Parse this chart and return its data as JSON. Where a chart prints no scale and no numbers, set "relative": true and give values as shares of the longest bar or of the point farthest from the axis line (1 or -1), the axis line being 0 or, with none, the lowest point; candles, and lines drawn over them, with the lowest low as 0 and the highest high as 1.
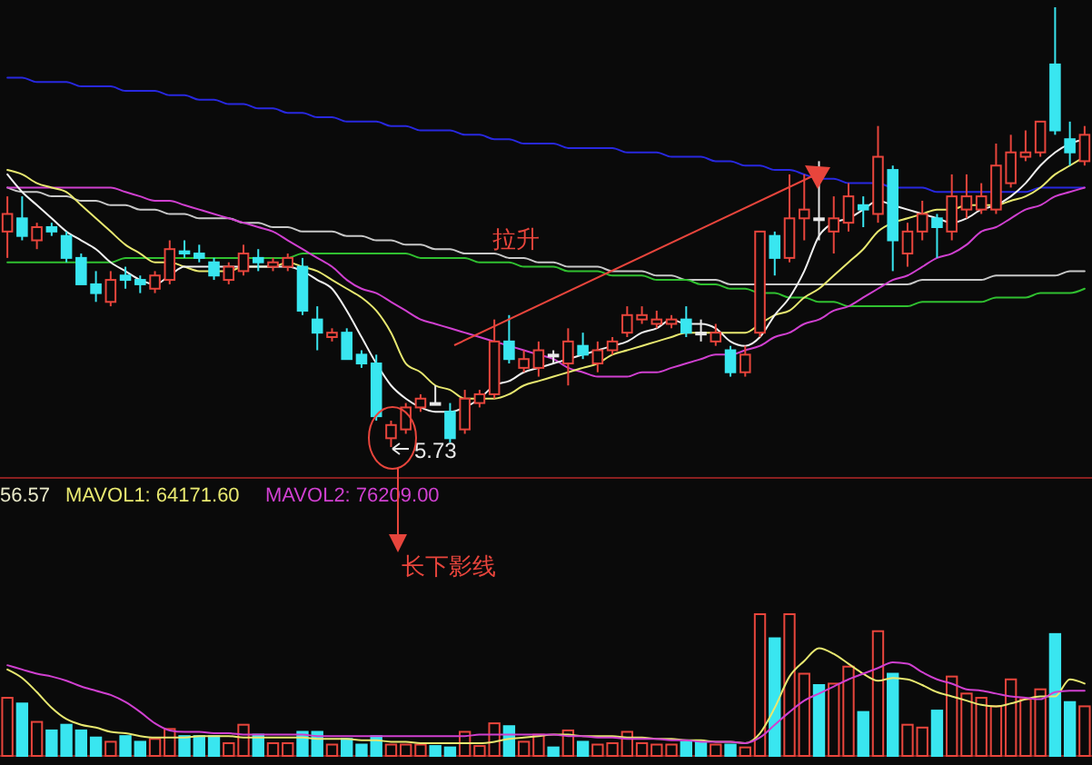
{
  "chart_data": [
    {
      "type": "candlestick",
      "relative": true,
      "categories": [
        null,
        null,
        null,
        null,
        null,
        null,
        null,
        null,
        null,
        null,
        null,
        null,
        null,
        null,
        null,
        null,
        null,
        null,
        null,
        null,
        null,
        null,
        null,
        null,
        null,
        null,
        null,
        null,
        null,
        null,
        null,
        null,
        null,
        null,
        null,
        null,
        null,
        null,
        null,
        null,
        null,
        null,
        null,
        null,
        null,
        null,
        null,
        null,
        null,
        null,
        null,
        null,
        null,
        null,
        null,
        null,
        null,
        null,
        null,
        null,
        null,
        null,
        null,
        null,
        null,
        null,
        null,
        null,
        null,
        null,
        null,
        null,
        null,
        null
      ],
      "ohlc": [
        [
          0.49,
          0.57,
          0.43,
          0.53
        ],
        [
          0.52,
          0.57,
          0.47,
          0.48
        ],
        [
          0.47,
          0.51,
          0.45,
          0.5
        ],
        [
          0.5,
          0.51,
          0.48,
          0.49
        ],
        [
          0.48,
          0.49,
          0.42,
          0.43
        ],
        [
          0.43,
          0.44,
          0.37,
          0.37
        ],
        [
          0.37,
          0.4,
          0.33,
          0.35
        ],
        [
          0.33,
          0.4,
          0.32,
          0.38
        ],
        [
          0.39,
          0.41,
          0.36,
          0.38
        ],
        [
          0.38,
          0.39,
          0.35,
          0.37
        ],
        [
          0.36,
          0.4,
          0.35,
          0.39
        ],
        [
          0.38,
          0.47,
          0.37,
          0.45
        ],
        [
          0.445,
          0.47,
          0.43,
          0.44
        ],
        [
          0.44,
          0.46,
          0.42,
          0.43
        ],
        [
          0.42,
          0.43,
          0.38,
          0.39
        ],
        [
          0.38,
          0.42,
          0.37,
          0.41
        ],
        [
          0.4,
          0.46,
          0.39,
          0.44
        ],
        [
          0.43,
          0.45,
          0.4,
          0.42
        ],
        [
          0.41,
          0.43,
          0.4,
          0.42
        ],
        [
          0.41,
          0.44,
          0.4,
          0.43
        ],
        [
          0.41,
          0.43,
          0.3,
          0.31
        ],
        [
          0.29,
          0.32,
          0.22,
          0.26
        ],
        [
          0.25,
          0.27,
          0.24,
          0.26
        ],
        [
          0.26,
          0.27,
          0.2,
          0.2
        ],
        [
          0.21,
          0.22,
          0.18,
          0.19
        ],
        [
          0.19,
          0.21,
          0.06,
          0.07
        ],
        [
          0.02,
          0.06,
          0,
          0.05
        ],
        [
          0.04,
          0.1,
          0.03,
          0.09
        ],
        [
          0.09,
          0.12,
          0.08,
          0.11
        ],
        [
          0.1,
          0.14,
          0.095,
          0.1
        ],
        [
          0.08,
          0.1,
          0.01,
          0.02
        ],
        [
          0.04,
          0.13,
          0.03,
          0.11
        ],
        [
          0.1,
          0.13,
          0.09,
          0.12
        ],
        [
          0.12,
          0.29,
          0.11,
          0.24
        ],
        [
          0.24,
          0.3,
          0.19,
          0.2
        ],
        [
          0.18,
          0.22,
          0.17,
          0.2
        ],
        [
          0.18,
          0.24,
          0.16,
          0.22
        ],
        [
          0.21,
          0.22,
          0.19,
          0.21
        ],
        [
          0.19,
          0.27,
          0.14,
          0.24
        ],
        [
          0.23,
          0.26,
          0.2,
          0.21
        ],
        [
          0.19,
          0.24,
          0.17,
          0.22
        ],
        [
          0.22,
          0.25,
          0.21,
          0.24
        ],
        [
          0.26,
          0.32,
          0.25,
          0.3
        ],
        [
          0.29,
          0.32,
          0.28,
          0.3
        ],
        [
          0.28,
          0.31,
          0.27,
          0.29
        ],
        [
          0.28,
          0.3,
          0.27,
          0.29
        ],
        [
          0.29,
          0.32,
          0.25,
          0.26
        ],
        [
          0.26,
          0.29,
          0.24,
          0.26
        ],
        [
          0.24,
          0.28,
          0.23,
          0.26
        ],
        [
          0.22,
          0.23,
          0.16,
          0.17
        ],
        [
          0.17,
          0.23,
          0.16,
          0.21
        ],
        [
          0.26,
          0.49,
          0.25,
          0.49
        ],
        [
          0.48,
          0.49,
          0.39,
          0.43
        ],
        [
          0.43,
          0.62,
          0.42,
          0.52
        ],
        [
          0.52,
          0.62,
          0.47,
          0.54
        ],
        [
          0.52,
          0.65,
          0.47,
          0.52
        ],
        [
          0.49,
          0.57,
          0.44,
          0.52
        ],
        [
          0.51,
          0.6,
          0.49,
          0.57
        ],
        [
          0.55,
          0.57,
          0.5,
          0.54
        ],
        [
          0.53,
          0.73,
          0.51,
          0.66
        ],
        [
          0.63,
          0.64,
          0.4,
          0.47
        ],
        [
          0.44,
          0.51,
          0.41,
          0.49
        ],
        [
          0.49,
          0.56,
          0.47,
          0.53
        ],
        [
          0.52,
          0.53,
          0.43,
          0.5
        ],
        [
          0.49,
          0.62,
          0.47,
          0.57
        ],
        [
          0.54,
          0.62,
          0.52,
          0.57
        ],
        [
          0.54,
          0.6,
          0.53,
          0.57
        ],
        [
          0.54,
          0.69,
          0.53,
          0.64
        ],
        [
          0.6,
          0.71,
          0.59,
          0.67
        ],
        [
          0.66,
          0.72,
          0.65,
          0.67
        ],
        [
          0.67,
          0.74,
          0.66,
          0.74
        ],
        [
          0.87,
          1,
          0.71,
          0.72
        ],
        [
          0.7,
          0.74,
          0.64,
          0.67
        ],
        [
          0.65,
          0.73,
          0.64,
          0.71
        ]
      ],
      "series": [
        {
          "type": "line",
          "color": "#2828e0",
          "values": [
            0.84,
            0.84,
            0.83,
            0.83,
            0.83,
            0.82,
            0.82,
            0.82,
            0.81,
            0.81,
            0.81,
            0.8,
            0.8,
            0.79,
            0.79,
            0.78,
            0.78,
            0.77,
            0.77,
            0.76,
            0.76,
            0.75,
            0.75,
            0.74,
            0.74,
            0.74,
            0.73,
            0.73,
            0.72,
            0.72,
            0.72,
            0.71,
            0.71,
            0.7,
            0.7,
            0.69,
            0.69,
            0.69,
            0.68,
            0.68,
            0.68,
            0.68,
            0.67,
            0.67,
            0.67,
            0.66,
            0.66,
            0.66,
            0.65,
            0.65,
            0.64,
            0.64,
            0.63,
            0.63,
            0.62,
            0.61,
            0.61,
            0.6,
            0.6,
            0.6,
            0.59,
            0.59,
            0.59,
            0.58,
            0.58,
            0.58,
            0.58,
            0.58,
            0.58,
            0.58,
            0.59,
            0.59,
            0.59,
            0.59
          ]
        },
        {
          "type": "line",
          "color": "#c8c8c8",
          "values": [
            0.59,
            0.58,
            0.58,
            0.57,
            0.57,
            0.56,
            0.56,
            0.55,
            0.55,
            0.54,
            0.54,
            0.53,
            0.53,
            0.52,
            0.52,
            0.52,
            0.51,
            0.51,
            0.5,
            0.5,
            0.49,
            0.49,
            0.49,
            0.48,
            0.48,
            0.47,
            0.47,
            0.46,
            0.46,
            0.45,
            0.45,
            0.44,
            0.44,
            0.44,
            0.43,
            0.43,
            0.42,
            0.42,
            0.41,
            0.41,
            0.41,
            0.4,
            0.4,
            0.4,
            0.39,
            0.39,
            0.38,
            0.38,
            0.38,
            0.37,
            0.37,
            0.37,
            0.37,
            0.37,
            0.37,
            0.37,
            0.37,
            0.37,
            0.37,
            0.37,
            0.37,
            0.37,
            0.38,
            0.38,
            0.38,
            0.38,
            0.38,
            0.39,
            0.39,
            0.39,
            0.39,
            0.39,
            0.4,
            0.4
          ]
        },
        {
          "type": "line",
          "color": "#30c030",
          "values": [
            0.42,
            0.42,
            0.42,
            0.42,
            0.42,
            0.42,
            0.42,
            0.42,
            0.43,
            0.43,
            0.43,
            0.43,
            0.43,
            0.43,
            0.43,
            0.43,
            0.43,
            0.43,
            0.43,
            0.43,
            0.44,
            0.44,
            0.44,
            0.44,
            0.44,
            0.44,
            0.44,
            0.44,
            0.43,
            0.43,
            0.43,
            0.43,
            0.42,
            0.42,
            0.42,
            0.41,
            0.41,
            0.41,
            0.4,
            0.4,
            0.4,
            0.39,
            0.39,
            0.39,
            0.38,
            0.38,
            0.38,
            0.37,
            0.37,
            0.36,
            0.36,
            0.35,
            0.35,
            0.34,
            0.34,
            0.33,
            0.33,
            0.32,
            0.32,
            0.32,
            0.32,
            0.32,
            0.33,
            0.33,
            0.33,
            0.33,
            0.33,
            0.34,
            0.34,
            0.34,
            0.35,
            0.35,
            0.35,
            0.36
          ]
        },
        {
          "type": "line",
          "color": "#d040d0",
          "values": [
            0.59,
            0.59,
            0.59,
            0.59,
            0.59,
            0.59,
            0.59,
            0.59,
            0.58,
            0.57,
            0.56,
            0.56,
            0.55,
            0.54,
            0.53,
            0.52,
            0.51,
            0.5,
            0.49,
            0.47,
            0.45,
            0.43,
            0.41,
            0.38,
            0.36,
            0.35,
            0.33,
            0.31,
            0.29,
            0.28,
            0.27,
            0.26,
            0.25,
            0.24,
            0.23,
            0.22,
            0.21,
            0.2,
            0.18,
            0.17,
            0.16,
            0.16,
            0.16,
            0.17,
            0.17,
            0.18,
            0.19,
            0.2,
            0.21,
            0.21,
            0.22,
            0.23,
            0.25,
            0.26,
            0.28,
            0.29,
            0.31,
            0.32,
            0.34,
            0.36,
            0.38,
            0.39,
            0.41,
            0.43,
            0.44,
            0.46,
            0.49,
            0.5,
            0.52,
            0.54,
            0.55,
            0.57,
            0.58,
            0.59
          ]
        },
        {
          "type": "line",
          "color": "#e8e870",
          "values": [
            0.63,
            0.62,
            0.6,
            0.59,
            0.58,
            0.55,
            0.52,
            0.49,
            0.46,
            0.44,
            0.42,
            0.42,
            0.41,
            0.4,
            0.4,
            0.4,
            0.41,
            0.41,
            0.41,
            0.42,
            0.41,
            0.4,
            0.38,
            0.36,
            0.34,
            0.31,
            0.26,
            0.19,
            0.17,
            0.14,
            0.13,
            0.11,
            0.11,
            0.11,
            0.12,
            0.14,
            0.15,
            0.16,
            0.17,
            0.18,
            0.19,
            0.21,
            0.22,
            0.23,
            0.24,
            0.25,
            0.26,
            0.26,
            0.26,
            0.26,
            0.26,
            0.28,
            0.3,
            0.31,
            0.34,
            0.36,
            0.39,
            0.42,
            0.45,
            0.49,
            0.51,
            0.52,
            0.53,
            0.54,
            0.54,
            0.55,
            0.55,
            0.55,
            0.56,
            0.57,
            0.59,
            0.62,
            0.64,
            0.66
          ]
        },
        {
          "type": "line",
          "color": "#f0f0f0",
          "values": [
            0.62,
            0.58,
            0.55,
            0.52,
            0.49,
            0.47,
            0.45,
            0.42,
            0.4,
            0.38,
            0.37,
            0.39,
            0.41,
            0.41,
            0.41,
            0.41,
            0.41,
            0.41,
            0.41,
            0.41,
            0.4,
            0.38,
            0.36,
            0.31,
            0.25,
            0.19,
            0.14,
            0.11,
            0.09,
            0.08,
            0.08,
            0.09,
            0.11,
            0.14,
            0.15,
            0.17,
            0.18,
            0.19,
            0.2,
            0.21,
            0.22,
            0.23,
            0.24,
            0.26,
            0.27,
            0.29,
            0.28,
            0.28,
            0.27,
            0.24,
            0.23,
            0.25,
            0.3,
            0.34,
            0.4,
            0.48,
            0.51,
            0.52,
            0.54,
            0.56,
            0.55,
            0.54,
            0.53,
            0.52,
            0.51,
            0.52,
            0.54,
            0.55,
            0.57,
            0.6,
            0.64,
            0.67,
            0.69,
            0.7
          ]
        }
      ],
      "annotations": [
        "拉升",
        "5.73",
        "长下影线"
      ]
    },
    {
      "type": "bar",
      "relative": true,
      "categories": [
        null,
        null,
        null,
        null,
        null,
        null,
        null,
        null,
        null,
        null,
        null,
        null,
        null,
        null,
        null,
        null,
        null,
        null,
        null,
        null,
        null,
        null,
        null,
        null,
        null,
        null,
        null,
        null,
        null,
        null,
        null,
        null,
        null,
        null,
        null,
        null,
        null,
        null,
        null,
        null,
        null,
        null,
        null,
        null,
        null,
        null,
        null,
        null,
        null,
        null,
        null,
        null,
        null,
        null,
        null,
        null,
        null,
        null,
        null,
        null,
        null,
        null,
        null,
        null,
        null,
        null,
        null,
        null,
        null,
        null,
        null,
        null,
        null,
        null
      ],
      "values": [
        0.41,
        0.37,
        0.24,
        0.18,
        0.22,
        0.18,
        0.13,
        0.1,
        0.14,
        0.1,
        0.12,
        0.19,
        0.14,
        0.14,
        0.14,
        0.09,
        0.22,
        0.15,
        0.09,
        0.09,
        0.17,
        0.17,
        0.08,
        0.12,
        0.08,
        0.14,
        0.08,
        0.08,
        0.08,
        0.07,
        0.06,
        0.17,
        0.07,
        0.23,
        0.21,
        0.1,
        0.15,
        0.06,
        0.18,
        0.1,
        0.08,
        0.09,
        0.17,
        0.09,
        0.08,
        0.08,
        0.1,
        0.1,
        0.08,
        0.08,
        0.06,
        1,
        0.83,
        1,
        0.58,
        0.5,
        0.51,
        0.63,
        0.31,
        0.88,
        0.58,
        0.22,
        0.2,
        0.32,
        0.56,
        0.44,
        0.41,
        0.35,
        0.54,
        0.4,
        0.47,
        0.86,
        0.38,
        0.35
      ],
      "colors": [
        "#e8453c",
        "#39e6f0",
        "#e8453c",
        "#39e6f0",
        "#39e6f0",
        "#39e6f0",
        "#39e6f0",
        "#e8453c",
        "#39e6f0",
        "#39e6f0",
        "#e8453c",
        "#e8453c",
        "#39e6f0",
        "#39e6f0",
        "#39e6f0",
        "#e8453c",
        "#e8453c",
        "#39e6f0",
        "#e8453c",
        "#e8453c",
        "#39e6f0",
        "#39e6f0",
        "#e8453c",
        "#39e6f0",
        "#39e6f0",
        "#39e6f0",
        "#e8453c",
        "#e8453c",
        "#e8453c",
        "#39e6f0",
        "#39e6f0",
        "#e8453c",
        "#e8453c",
        "#e8453c",
        "#39e6f0",
        "#e8453c",
        "#e8453c",
        "#39e6f0",
        "#e8453c",
        "#39e6f0",
        "#e8453c",
        "#e8453c",
        "#e8453c",
        "#e8453c",
        "#e8453c",
        "#e8453c",
        "#39e6f0",
        "#39e6f0",
        "#e8453c",
        "#39e6f0",
        "#e8453c",
        "#e8453c",
        "#39e6f0",
        "#e8453c",
        "#e8453c",
        "#39e6f0",
        "#e8453c",
        "#e8453c",
        "#39e6f0",
        "#e8453c",
        "#39e6f0",
        "#e8453c",
        "#e8453c",
        "#39e6f0",
        "#e8453c",
        "#e8453c",
        "#e8453c",
        "#e8453c",
        "#e8453c",
        "#e8453c",
        "#e8453c",
        "#39e6f0",
        "#39e6f0",
        "#e8453c"
      ],
      "series": [
        {
          "type": "line",
          "color": "#e8e870",
          "values": [
            0.61,
            0.55,
            0.45,
            0.34,
            0.26,
            0.22,
            0.2,
            0.17,
            0.16,
            0.14,
            0.13,
            0.13,
            0.13,
            0.14,
            0.14,
            0.14,
            0.13,
            0.13,
            0.13,
            0.13,
            0.13,
            0.12,
            0.12,
            0.12,
            0.11,
            0.11,
            0.1,
            0.1,
            0.09,
            0.09,
            0.09,
            0.09,
            0.09,
            0.1,
            0.12,
            0.13,
            0.14,
            0.15,
            0.15,
            0.14,
            0.14,
            0.14,
            0.13,
            0.13,
            0.12,
            0.12,
            0.11,
            0.11,
            0.1,
            0.1,
            0.09,
            0.16,
            0.34,
            0.56,
            0.67,
            0.76,
            0.72,
            0.65,
            0.58,
            0.53,
            0.55,
            0.54,
            0.5,
            0.45,
            0.42,
            0.39,
            0.36,
            0.35,
            0.37,
            0.4,
            0.42,
            0.42,
            0.54,
            0.51
          ]
        },
        {
          "type": "line",
          "color": "#d040d0",
          "values": [
            0.64,
            0.61,
            0.58,
            0.56,
            0.53,
            0.49,
            0.46,
            0.43,
            0.38,
            0.31,
            0.23,
            0.18,
            0.17,
            0.17,
            0.16,
            0.16,
            0.15,
            0.15,
            0.15,
            0.15,
            0.15,
            0.14,
            0.14,
            0.14,
            0.14,
            0.14,
            0.14,
            0.14,
            0.14,
            0.14,
            0.14,
            0.14,
            0.15,
            0.15,
            0.15,
            0.15,
            0.15,
            0.15,
            0.14,
            0.14,
            0.13,
            0.13,
            0.12,
            0.12,
            0.12,
            0.11,
            0.11,
            0.1,
            0.1,
            0.1,
            0.09,
            0.13,
            0.22,
            0.31,
            0.39,
            0.44,
            0.49,
            0.54,
            0.58,
            0.62,
            0.66,
            0.65,
            0.59,
            0.54,
            0.51,
            0.47,
            0.46,
            0.44,
            0.42,
            0.41,
            0.4,
            0.45,
            0.46,
            0.46
          ]
        }
      ],
      "annotations": [
        "56.57",
        "MAVOL1: 64171.60",
        "MAVOL2: 76209.00"
      ]
    }
  ]
}
